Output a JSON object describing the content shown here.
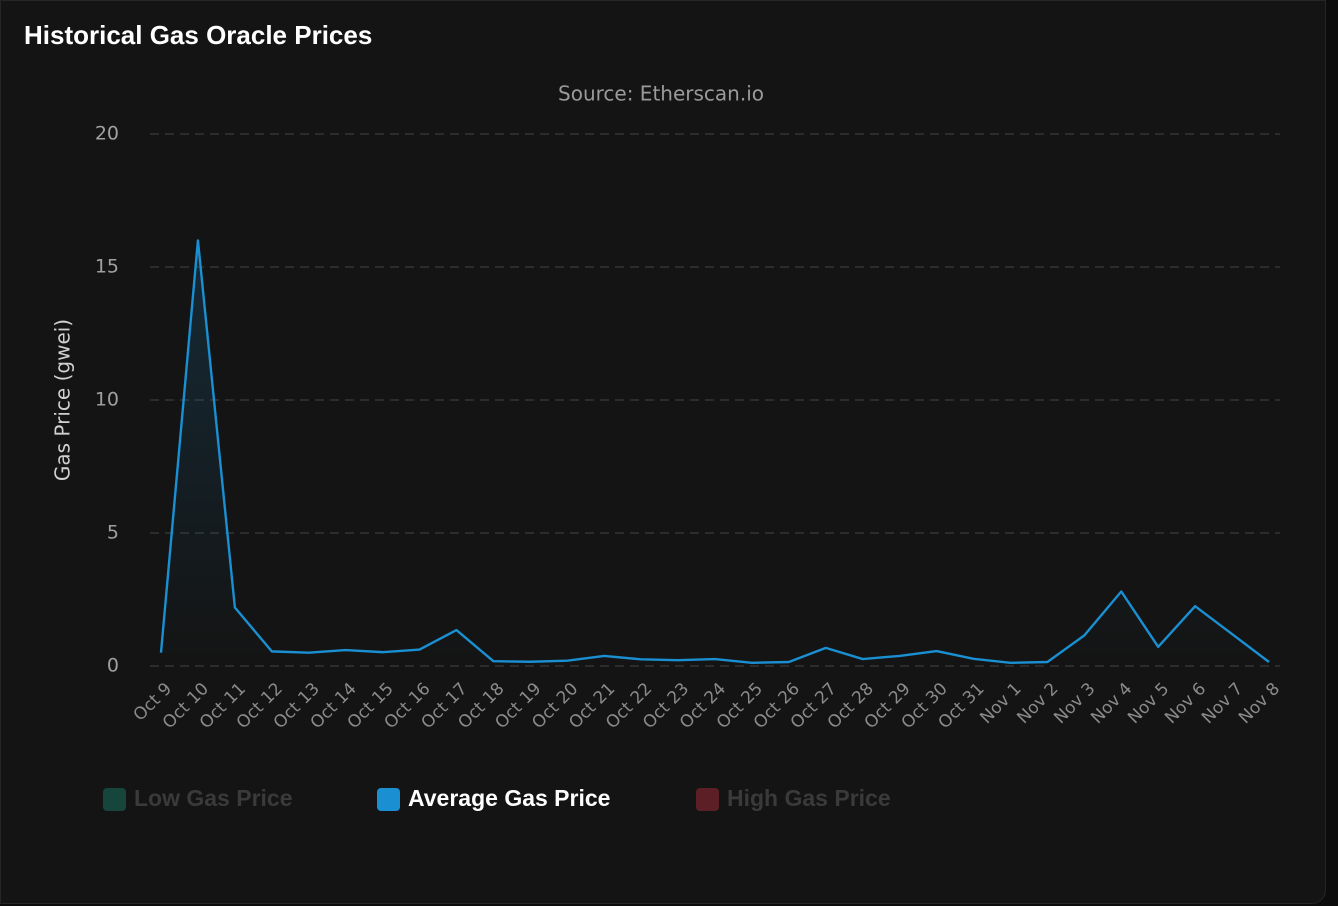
{
  "chart_data": {
    "type": "line",
    "title": "Historical Gas Oracle Prices",
    "subtitle": "Source: Etherscan.io",
    "y_label": "Gas Price (gwei)",
    "categories": [
      "Oct 9",
      "Oct 10",
      "Oct 11",
      "Oct 12",
      "Oct 13",
      "Oct 14",
      "Oct 15",
      "Oct 16",
      "Oct 17",
      "Oct 18",
      "Oct 19",
      "Oct 20",
      "Oct 21",
      "Oct 22",
      "Oct 23",
      "Oct 24",
      "Oct 25",
      "Oct 26",
      "Oct 27",
      "Oct 28",
      "Oct 29",
      "Oct 30",
      "Oct 31",
      "Nov 1",
      "Nov 2",
      "Nov 3",
      "Nov 4",
      "Nov 5",
      "Nov 6",
      "Nov 7",
      "Nov 8"
    ],
    "series": [
      {
        "name": "Low Gas Price",
        "color": "#16a085",
        "visible": false
      },
      {
        "name": "Average Gas Price",
        "color": "#1a8fd1",
        "visible": true,
        "values": [
          0.5,
          16,
          2.2,
          0.55,
          0.5,
          0.6,
          0.52,
          0.62,
          1.35,
          0.18,
          0.16,
          0.2,
          0.38,
          0.25,
          0.22,
          0.26,
          0.12,
          0.15,
          0.68,
          0.26,
          0.38,
          0.56,
          0.27,
          0.12,
          0.15,
          1.15,
          2.8,
          0.72,
          2.25,
          1.2,
          0.15
        ]
      },
      {
        "name": "High Gas Price",
        "color": "#e03444",
        "visible": false
      }
    ],
    "ylim": [
      0,
      20
    ],
    "yticks": [
      0,
      5,
      10,
      15,
      20
    ],
    "grid": true
  }
}
